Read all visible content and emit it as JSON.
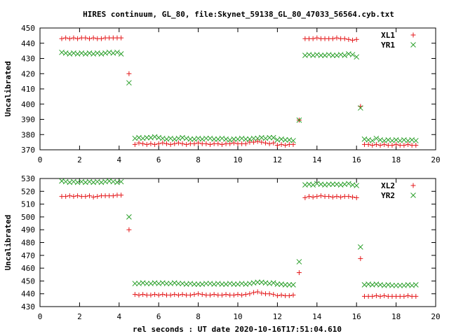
{
  "figure": {
    "title": "HIRES continuum, GL_80, file:Skynet_59138_GL_80_47033_56564.cyb.txt",
    "xlabel": "rel seconds : UT date 2020-10-16T17:51:04.610"
  },
  "chart_data": [
    {
      "type": "scatter",
      "ylabel": "Uncalibrated",
      "xlim": [
        0,
        20
      ],
      "ylim": [
        370,
        450
      ],
      "xticks": [
        0,
        2,
        4,
        6,
        8,
        10,
        12,
        14,
        16,
        18,
        20
      ],
      "yticks": [
        370,
        380,
        390,
        400,
        410,
        420,
        430,
        440,
        450
      ],
      "legend_position": "top-right",
      "series": [
        {
          "name": "XL1",
          "marker": "plus",
          "color": "#e41a1c",
          "x": [
            1.1,
            1.3,
            1.5,
            1.7,
            1.9,
            2.1,
            2.3,
            2.5,
            2.7,
            2.9,
            3.1,
            3.3,
            3.5,
            3.7,
            3.9,
            4.1,
            4.5,
            4.8,
            5.0,
            5.2,
            5.4,
            5.6,
            5.8,
            6.0,
            6.2,
            6.4,
            6.6,
            6.8,
            7.0,
            7.2,
            7.4,
            7.6,
            7.8,
            8.0,
            8.2,
            8.4,
            8.6,
            8.8,
            9.0,
            9.2,
            9.4,
            9.6,
            9.8,
            10.0,
            10.2,
            10.4,
            10.6,
            10.8,
            11.0,
            11.2,
            11.4,
            11.6,
            11.8,
            12.0,
            12.2,
            12.4,
            12.6,
            12.8,
            13.1,
            13.4,
            13.6,
            13.8,
            14.0,
            14.2,
            14.4,
            14.6,
            14.8,
            15.0,
            15.2,
            15.4,
            15.6,
            15.8,
            16.0,
            16.2,
            16.4,
            16.6,
            16.8,
            17.0,
            17.2,
            17.4,
            17.6,
            17.8,
            18.0,
            18.2,
            18.4,
            18.6,
            18.8,
            19.0
          ],
          "y": [
            443,
            443.5,
            443,
            443.5,
            443,
            443.5,
            443.5,
            443,
            443.5,
            443,
            443,
            443.5,
            443.5,
            443.5,
            443.5,
            443.5,
            420,
            373.5,
            374.5,
            374,
            373.5,
            374,
            373.5,
            374,
            374.5,
            374,
            373.5,
            374,
            374.5,
            374,
            373.5,
            374,
            374,
            374.5,
            374,
            374,
            373.5,
            374,
            374,
            373.5,
            374,
            374,
            374.5,
            374,
            374,
            374,
            375,
            375,
            375.5,
            375,
            374.5,
            374,
            374.5,
            373,
            373.5,
            373,
            373.5,
            373.5,
            389.5,
            443,
            443,
            443,
            443.5,
            443,
            443,
            443,
            443,
            443.5,
            443,
            443,
            442.5,
            442,
            442.5,
            398.5,
            373.5,
            373.5,
            373,
            373.5,
            373,
            373.5,
            373,
            373,
            373.5,
            373,
            373,
            373.5,
            373,
            373
          ]
        },
        {
          "name": "YR1",
          "marker": "cross",
          "color": "#2ca02c",
          "x": [
            1.1,
            1.3,
            1.5,
            1.7,
            1.9,
            2.1,
            2.3,
            2.5,
            2.7,
            2.9,
            3.1,
            3.3,
            3.5,
            3.7,
            3.9,
            4.1,
            4.5,
            4.8,
            5.0,
            5.2,
            5.4,
            5.6,
            5.8,
            6.0,
            6.2,
            6.4,
            6.6,
            6.8,
            7.0,
            7.2,
            7.4,
            7.6,
            7.8,
            8.0,
            8.2,
            8.4,
            8.6,
            8.8,
            9.0,
            9.2,
            9.4,
            9.6,
            9.8,
            10.0,
            10.2,
            10.4,
            10.6,
            10.8,
            11.0,
            11.2,
            11.4,
            11.6,
            11.8,
            12.0,
            12.2,
            12.4,
            12.6,
            12.8,
            13.1,
            13.4,
            13.6,
            13.8,
            14.0,
            14.2,
            14.4,
            14.6,
            14.8,
            15.0,
            15.2,
            15.4,
            15.6,
            15.8,
            16.0,
            16.2,
            16.4,
            16.6,
            16.8,
            17.0,
            17.2,
            17.4,
            17.6,
            17.8,
            18.0,
            18.2,
            18.4,
            18.6,
            18.8,
            19.0
          ],
          "y": [
            434,
            433.5,
            433,
            433.5,
            433,
            433.5,
            433,
            433.5,
            433,
            433.5,
            433,
            433.5,
            434,
            433.5,
            434,
            433,
            414,
            377.5,
            378,
            377.5,
            378,
            378,
            378.5,
            378,
            377.5,
            377,
            377.5,
            377,
            377.5,
            378,
            377.5,
            377,
            377,
            377.5,
            377,
            377.5,
            377.5,
            377,
            377,
            377.5,
            377,
            376.5,
            377,
            377,
            377.5,
            377,
            377,
            377.5,
            377.5,
            378,
            377.5,
            378,
            378,
            376.5,
            377,
            376.5,
            376.5,
            376,
            389.5,
            432,
            432.5,
            432,
            432.5,
            432,
            432,
            432.5,
            432,
            432,
            432.5,
            432,
            433,
            432.5,
            431,
            397.5,
            377,
            376.5,
            376,
            377.5,
            376.5,
            376,
            376.5,
            376,
            376.5,
            376,
            376.5,
            376,
            376.5,
            376
          ]
        }
      ]
    },
    {
      "type": "scatter",
      "ylabel": "Uncalibrated",
      "xlim": [
        0,
        20
      ],
      "ylim": [
        430,
        530
      ],
      "xticks": [
        0,
        2,
        4,
        6,
        8,
        10,
        12,
        14,
        16,
        18,
        20
      ],
      "yticks": [
        430,
        440,
        450,
        460,
        470,
        480,
        490,
        500,
        510,
        520,
        530
      ],
      "legend_position": "top-right",
      "series": [
        {
          "name": "XL2",
          "marker": "plus",
          "color": "#e41a1c",
          "x": [
            1.1,
            1.3,
            1.5,
            1.7,
            1.9,
            2.1,
            2.3,
            2.5,
            2.7,
            2.9,
            3.1,
            3.3,
            3.5,
            3.7,
            3.9,
            4.1,
            4.5,
            4.8,
            5.0,
            5.2,
            5.4,
            5.6,
            5.8,
            6.0,
            6.2,
            6.4,
            6.6,
            6.8,
            7.0,
            7.2,
            7.4,
            7.6,
            7.8,
            8.0,
            8.2,
            8.4,
            8.6,
            8.8,
            9.0,
            9.2,
            9.4,
            9.6,
            9.8,
            10.0,
            10.2,
            10.4,
            10.6,
            10.8,
            11.0,
            11.2,
            11.4,
            11.6,
            11.8,
            12.0,
            12.2,
            12.4,
            12.6,
            12.8,
            13.1,
            13.4,
            13.6,
            13.8,
            14.0,
            14.2,
            14.4,
            14.6,
            14.8,
            15.0,
            15.2,
            15.4,
            15.6,
            15.8,
            16.0,
            16.2,
            16.4,
            16.6,
            16.8,
            17.0,
            17.2,
            17.4,
            17.6,
            17.8,
            18.0,
            18.2,
            18.4,
            18.6,
            18.8,
            19.0
          ],
          "y": [
            516,
            516,
            516.5,
            516,
            516.5,
            516,
            516,
            516.5,
            515.5,
            516,
            516.5,
            516.5,
            516.5,
            516.5,
            517,
            517,
            490,
            439.5,
            439,
            439.5,
            439,
            439,
            439.5,
            439,
            439.5,
            439,
            439,
            439.5,
            439,
            439.5,
            439,
            439,
            439.5,
            440,
            439.5,
            439,
            439,
            439.5,
            439,
            439,
            439.5,
            439,
            439,
            439.5,
            439,
            439.5,
            440,
            441,
            441.5,
            440.5,
            440,
            440,
            439.5,
            438.5,
            439,
            438.5,
            438.5,
            439,
            456.5,
            515,
            516,
            515.5,
            516,
            516.5,
            516,
            516,
            515.5,
            516,
            515.5,
            516,
            516,
            515.5,
            515,
            467.5,
            438,
            438,
            438,
            438.5,
            438,
            438.5,
            438,
            438,
            438,
            438,
            438,
            438.5,
            438,
            438
          ]
        },
        {
          "name": "YR2",
          "marker": "cross",
          "color": "#2ca02c",
          "x": [
            1.1,
            1.3,
            1.5,
            1.7,
            1.9,
            2.1,
            2.3,
            2.5,
            2.7,
            2.9,
            3.1,
            3.3,
            3.5,
            3.7,
            3.9,
            4.1,
            4.5,
            4.8,
            5.0,
            5.2,
            5.4,
            5.6,
            5.8,
            6.0,
            6.2,
            6.4,
            6.6,
            6.8,
            7.0,
            7.2,
            7.4,
            7.6,
            7.8,
            8.0,
            8.2,
            8.4,
            8.6,
            8.8,
            9.0,
            9.2,
            9.4,
            9.6,
            9.8,
            10.0,
            10.2,
            10.4,
            10.6,
            10.8,
            11.0,
            11.2,
            11.4,
            11.6,
            11.8,
            12.0,
            12.2,
            12.4,
            12.6,
            12.8,
            13.1,
            13.4,
            13.6,
            13.8,
            14.0,
            14.2,
            14.4,
            14.6,
            14.8,
            15.0,
            15.2,
            15.4,
            15.6,
            15.8,
            16.0,
            16.2,
            16.4,
            16.6,
            16.8,
            17.0,
            17.2,
            17.4,
            17.6,
            17.8,
            18.0,
            18.2,
            18.4,
            18.6,
            18.8,
            19.0
          ],
          "y": [
            528,
            527.5,
            527,
            527.5,
            527,
            527.5,
            527,
            527.5,
            527,
            527.5,
            527,
            527.5,
            528,
            527.5,
            527,
            527.5,
            500,
            448,
            448,
            448.5,
            448,
            448,
            448.5,
            448,
            448.5,
            448,
            448,
            448.5,
            448,
            448,
            447.5,
            448,
            447.5,
            447.5,
            447.5,
            448,
            448,
            447.5,
            448,
            447.5,
            447.5,
            448,
            447.5,
            447.5,
            448,
            447.5,
            448,
            448.5,
            449,
            449,
            448.5,
            448,
            448.5,
            447.5,
            447.5,
            447,
            447,
            447,
            465,
            525,
            525.5,
            525,
            526,
            525.5,
            525,
            525.5,
            525.5,
            525.5,
            525,
            525.5,
            526,
            525,
            524.5,
            476.5,
            447,
            447.5,
            447,
            447.5,
            447,
            446.5,
            447,
            446.5,
            446.5,
            446.5,
            446.5,
            447,
            446.5,
            447
          ]
        }
      ]
    }
  ]
}
